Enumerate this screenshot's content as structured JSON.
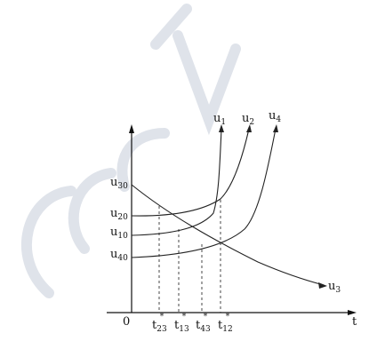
{
  "chart_data": {
    "type": "line",
    "xlabel": "t",
    "origin_label": "0",
    "x_ticks": [
      {
        "base": "t",
        "sub": "23",
        "sup": "*"
      },
      {
        "base": "t",
        "sub": "13",
        "sup": "*"
      },
      {
        "base": "t",
        "sub": "43",
        "sup": "*"
      },
      {
        "base": "t",
        "sub": "12",
        "sup": "*"
      }
    ],
    "series": [
      {
        "name": "u1",
        "base": "u",
        "sub": "1"
      },
      {
        "name": "u2",
        "base": "u",
        "sub": "2"
      },
      {
        "name": "u3",
        "base": "u",
        "sub": "3"
      },
      {
        "name": "u4",
        "base": "u",
        "sub": "4"
      }
    ],
    "y_start_labels": [
      {
        "base": "u",
        "sub": "30"
      },
      {
        "base": "u",
        "sub": "20"
      },
      {
        "base": "u",
        "sub": "10"
      },
      {
        "base": "u",
        "sub": "40"
      }
    ],
    "grid": false,
    "note": "Qualitative sketch: u3 decreases from u30; u1, u2, u4 increase from u10, u20, u40; crossing times t23*, t13*, t43*, t12* marked by dashed verticals."
  }
}
